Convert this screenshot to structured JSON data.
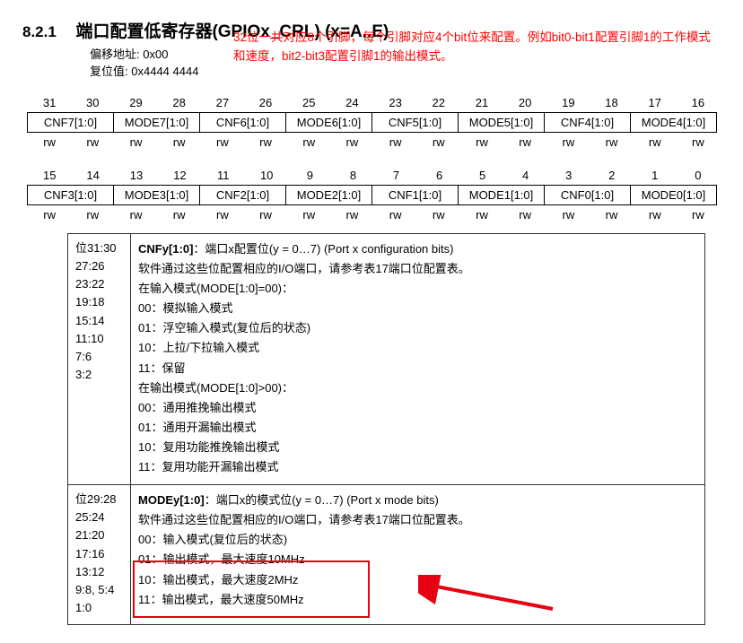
{
  "heading": {
    "num": "8.2.1",
    "title": "端口配置低寄存器(GPIOx_CRL) (x=A..E)"
  },
  "sub": {
    "offset_label": "偏移地址:",
    "offset_val": "0x00",
    "reset_label": "复位值:",
    "reset_val": "0x4444 4444"
  },
  "redtext": "32位一共对应8个引脚，每个引脚对应4个bit位来配置。例如bit0-bit1配置引脚1的工作模式和速度，bit2-bit3配置引脚1的输出模式。",
  "bitnums_hi": [
    "31",
    "30",
    "29",
    "28",
    "27",
    "26",
    "25",
    "24",
    "23",
    "22",
    "21",
    "20",
    "19",
    "18",
    "17",
    "16"
  ],
  "bitcells_hi": [
    "CNF7[1:0]",
    "MODE7[1:0]",
    "CNF6[1:0]",
    "MODE6[1:0]",
    "CNF5[1:0]",
    "MODE5[1:0]",
    "CNF4[1:0]",
    "MODE4[1:0]"
  ],
  "bitnums_lo": [
    "15",
    "14",
    "13",
    "12",
    "11",
    "10",
    "9",
    "8",
    "7",
    "6",
    "5",
    "4",
    "3",
    "2",
    "1",
    "0"
  ],
  "bitcells_lo": [
    "CNF3[1:0]",
    "MODE3[1:0]",
    "CNF2[1:0]",
    "MODE2[1:0]",
    "CNF1[1:0]",
    "MODE1[1:0]",
    "CNF0[1:0]",
    "MODE0[1:0]"
  ],
  "rw": "rw",
  "cnfy": {
    "bits": [
      "位31:30",
      "27:26",
      "23:22",
      "19:18",
      "15:14",
      "11:10",
      "7:6",
      "3:2"
    ],
    "title_bold": "CNFy[1:0]",
    "title_rest": "：端口x配置位(y = 0…7) (Port x configuration bits)",
    "l1": "软件通过这些位配置相应的I/O端口，请参考表17端口位配置表。",
    "l2": "在输入模式(MODE[1:0]=00)：",
    "l3": "00：模拟输入模式",
    "l4": "01：浮空输入模式(复位后的状态)",
    "l5": "10：上拉/下拉输入模式",
    "l6": "11：保留",
    "l7": "在输出模式(MODE[1:0]>00)：",
    "l8": "00：通用推挽输出模式",
    "l9": "01：通用开漏输出模式",
    "l10": "10：复用功能推挽输出模式",
    "l11": "11：复用功能开漏输出模式"
  },
  "modey": {
    "bits": [
      "位29:28",
      "25:24",
      "21:20",
      "17:16",
      "13:12",
      "9:8, 5:4",
      "1:0"
    ],
    "title_bold": "MODEy[1:0]",
    "title_rest": "：端口x的模式位(y = 0…7) (Port x mode bits)",
    "l1": "软件通过这些位配置相应的I/O端口，请参考表17端口位配置表。",
    "l2": "00：输入模式(复位后的状态)",
    "l3": "01：输出模式，最大速度10MHz",
    "l4": "10：输出模式，最大速度2MHz",
    "l5": "11：输出模式，最大速度50MHz"
  },
  "arrow_color": "#e60012"
}
